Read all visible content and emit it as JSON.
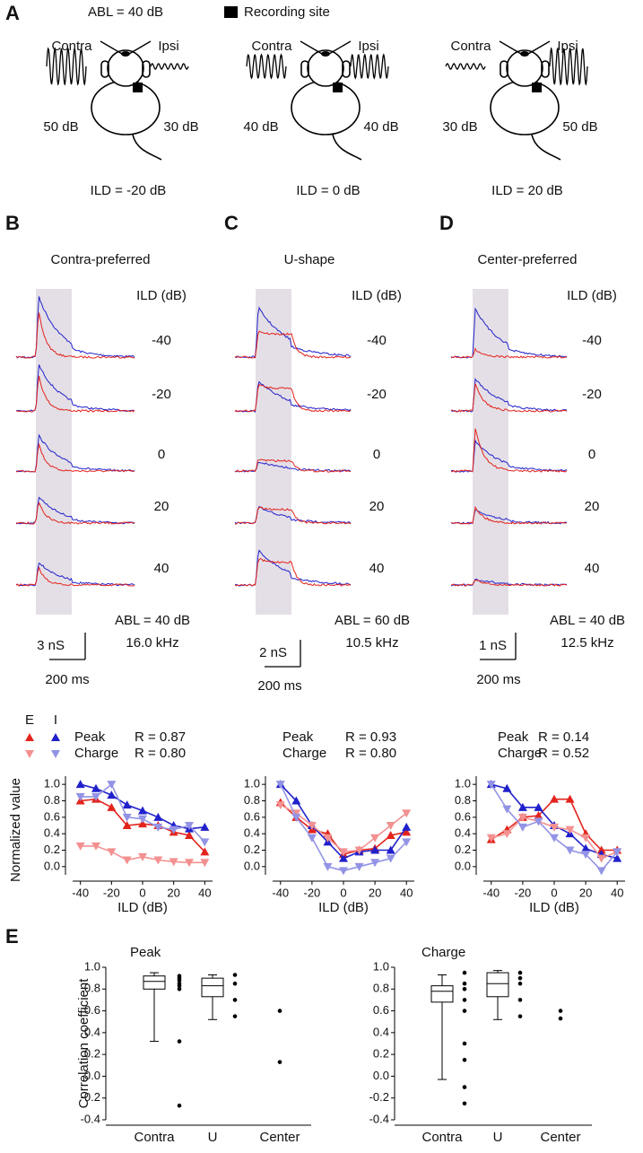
{
  "panel_a": {
    "label": "A",
    "abl": "ABL = 40 dB",
    "legend": "Recording site",
    "conditions": [
      {
        "contra": "Contra",
        "ipsi": "Ipsi",
        "left_db": "50 dB",
        "right_db": "30 dB",
        "ild": "ILD = -20 dB"
      },
      {
        "contra": "Contra",
        "ipsi": "Ipsi",
        "left_db": "40 dB",
        "right_db": "40 dB",
        "ild": "ILD = 0 dB"
      },
      {
        "contra": "Contra",
        "ipsi": "Ipsi",
        "left_db": "30 dB",
        "right_db": "50 dB",
        "ild": "ILD = 20 dB"
      }
    ]
  },
  "trace_panels": [
    {
      "label": "B",
      "title": "Contra-preferred",
      "ild_header": "ILD (dB)",
      "ilds": [
        -40,
        -20,
        0,
        20,
        40
      ],
      "abl": "ABL = 40 dB",
      "freq": "16.0 kHz",
      "scale_y": {
        "value": 3,
        "label": "3 nS"
      },
      "scale_x": "200 ms",
      "E": [
        5.3,
        4.2,
        3.2,
        2.5,
        2.0
      ],
      "I": [
        6.8,
        5.2,
        4.0,
        3.0,
        2.6
      ]
    },
    {
      "label": "C",
      "title": "U-shape",
      "ild_header": "ILD (dB)",
      "ilds": [
        -40,
        -20,
        0,
        20,
        40
      ],
      "abl": "ABL = 60 dB",
      "freq": "10.5 kHz",
      "scale_y": {
        "value": 2,
        "label": "2 nS"
      },
      "scale_x": "200 ms",
      "E": [
        2.0,
        2.0,
        0.9,
        1.2,
        2.0
      ],
      "I": [
        3.7,
        2.2,
        0.7,
        1.2,
        2.6
      ]
    },
    {
      "label": "D",
      "title": "Center-preferred",
      "ild_header": "ILD (dB)",
      "ilds": [
        -40,
        -20,
        0,
        20,
        40
      ],
      "abl": "ABL = 40 dB",
      "freq": "12.5 kHz",
      "scale_y": {
        "value": 1,
        "label": "1 nS"
      },
      "scale_x": "200 ms",
      "E": [
        0.3,
        1.0,
        1.6,
        0.6,
        0.2
      ],
      "I": [
        1.8,
        1.2,
        1.1,
        0.5,
        0.2
      ]
    }
  ],
  "panel_e_label": "E",
  "chart_data": [
    {
      "type": "line",
      "xlabel": "ILD (dB)",
      "ylabel": "Normalized value",
      "legend": {
        "columns": [
          "E",
          "I"
        ],
        "rows": [
          {
            "name": "Peak",
            "stat": "R = 0.87"
          },
          {
            "name": "Charge",
            "stat": "R = 0.80"
          }
        ]
      },
      "x": [
        -40,
        -30,
        -20,
        -10,
        0,
        10,
        20,
        30,
        40
      ],
      "xlim": [
        -45,
        45
      ],
      "xticks": [
        -40,
        -20,
        0,
        20,
        40
      ],
      "ylim": [
        -0.1,
        1.1
      ],
      "yticks": [
        {
          "value": 0,
          "label": "0.0"
        },
        0.2,
        0.4,
        0.6,
        0.8,
        {
          "value": 1,
          "label": "1.0"
        }
      ],
      "series": [
        {
          "color": "#e3241d",
          "marker": "up",
          "values": [
            0.8,
            0.82,
            0.72,
            0.5,
            0.52,
            0.5,
            0.42,
            0.38,
            0.18
          ]
        },
        {
          "color": "#2020cc",
          "marker": "up",
          "values": [
            1.0,
            0.95,
            0.87,
            0.75,
            0.68,
            0.6,
            0.5,
            0.46,
            0.48
          ]
        },
        {
          "color": "#f39191",
          "marker": "down",
          "values": [
            0.25,
            0.25,
            0.18,
            0.08,
            0.12,
            0.08,
            0.06,
            0.05,
            0.05
          ]
        },
        {
          "color": "#9393e6",
          "marker": "down",
          "values": [
            0.85,
            0.85,
            1.0,
            0.6,
            0.58,
            0.48,
            0.45,
            0.5,
            0.3
          ]
        }
      ]
    },
    {
      "type": "line",
      "xlabel": "ILD (dB)",
      "legend": {
        "rows": [
          {
            "name": "Peak",
            "stat": "R = 0.93"
          },
          {
            "name": "Charge",
            "stat": "R = 0.80"
          }
        ]
      },
      "x": [
        -40,
        -30,
        -20,
        -10,
        0,
        10,
        20,
        30,
        40
      ],
      "xlim": [
        -45,
        45
      ],
      "xticks": [
        -40,
        -20,
        0,
        20,
        40
      ],
      "ylim": [
        -0.1,
        1.1
      ],
      "yticks": [
        {
          "value": 0,
          "label": "0.0"
        },
        0.2,
        0.4,
        0.6,
        0.8,
        {
          "value": 1,
          "label": "1.0"
        }
      ],
      "series": [
        {
          "color": "#e3241d",
          "marker": "up",
          "values": [
            0.78,
            0.6,
            0.45,
            0.4,
            0.15,
            0.2,
            0.22,
            0.38,
            0.42
          ]
        },
        {
          "color": "#2020cc",
          "marker": "up",
          "values": [
            1.0,
            0.8,
            0.5,
            0.3,
            0.1,
            0.18,
            0.2,
            0.2,
            0.48
          ]
        },
        {
          "color": "#f39191",
          "marker": "down",
          "values": [
            0.75,
            0.65,
            0.5,
            0.35,
            0.18,
            0.2,
            0.35,
            0.5,
            0.65
          ]
        },
        {
          "color": "#9393e6",
          "marker": "down",
          "values": [
            1.0,
            0.6,
            0.35,
            0.0,
            -0.05,
            0.0,
            0.05,
            0.1,
            0.3
          ]
        }
      ]
    },
    {
      "type": "line",
      "xlabel": "ILD (dB)",
      "legend": {
        "rows": [
          {
            "name": "Peak",
            "stat": "R = 0.14"
          },
          {
            "name": "Charge",
            "stat": "R = 0.52"
          }
        ]
      },
      "x": [
        -40,
        -30,
        -20,
        -10,
        0,
        10,
        20,
        30,
        40
      ],
      "xlim": [
        -45,
        45
      ],
      "xticks": [
        -40,
        -20,
        0,
        20,
        40
      ],
      "ylim": [
        -0.1,
        1.1
      ],
      "yticks": [
        {
          "value": 0,
          "label": "0.0"
        },
        0.2,
        0.4,
        0.6,
        0.8,
        {
          "value": 1,
          "label": "1.0"
        }
      ],
      "series": [
        {
          "color": "#e3241d",
          "marker": "up",
          "values": [
            0.33,
            0.45,
            0.6,
            0.62,
            0.82,
            0.82,
            0.4,
            0.2,
            0.2
          ]
        },
        {
          "color": "#2020cc",
          "marker": "up",
          "values": [
            1.0,
            0.95,
            0.72,
            0.72,
            0.5,
            0.4,
            0.22,
            0.15,
            0.1
          ]
        },
        {
          "color": "#f39191",
          "marker": "down",
          "values": [
            0.35,
            0.4,
            0.6,
            0.55,
            0.48,
            0.45,
            0.35,
            0.1,
            0.18
          ]
        },
        {
          "color": "#9393e6",
          "marker": "down",
          "values": [
            1.0,
            0.7,
            0.48,
            0.55,
            0.35,
            0.2,
            0.15,
            -0.05,
            0.18
          ]
        }
      ]
    },
    {
      "type": "box",
      "title": "Peak",
      "ylabel": "Correlation coefficient",
      "categories": [
        "Contra",
        "U",
        "Center"
      ],
      "ylim": [
        -0.4,
        1.0
      ],
      "yticks": [
        -0.4,
        -0.2,
        {
          "value": 0,
          "label": "0.0"
        },
        0.2,
        0.4,
        0.6,
        0.8,
        {
          "value": 1,
          "label": "1.0"
        }
      ],
      "boxes": [
        {
          "low": 0.32,
          "q1": 0.8,
          "median": 0.87,
          "q3": 0.92,
          "high": 0.95
        },
        {
          "low": 0.52,
          "q1": 0.73,
          "median": 0.83,
          "q3": 0.9,
          "high": 0.93
        }
      ],
      "points": [
        [
          0.92,
          0.9,
          0.88,
          0.85,
          0.83,
          0.8,
          0.32,
          -0.27
        ],
        [
          0.93,
          0.85,
          0.7,
          0.55
        ],
        [
          0.6,
          0.13
        ]
      ]
    },
    {
      "type": "box",
      "title": "Charge",
      "categories": [
        "Contra",
        "U",
        "Center"
      ],
      "ylim": [
        -0.4,
        1.0
      ],
      "yticks": [
        -0.4,
        -0.2,
        {
          "value": 0,
          "label": "0.0"
        },
        0.2,
        0.4,
        0.6,
        0.8,
        {
          "value": 1,
          "label": "1.0"
        }
      ],
      "boxes": [
        {
          "low": -0.03,
          "q1": 0.68,
          "median": 0.78,
          "q3": 0.83,
          "high": 0.93
        },
        {
          "low": 0.52,
          "q1": 0.73,
          "median": 0.85,
          "q3": 0.95,
          "high": 0.97
        }
      ],
      "points": [
        [
          0.95,
          0.85,
          0.8,
          0.7,
          0.6,
          0.3,
          0.15,
          -0.1,
          -0.25
        ],
        [
          0.95,
          0.9,
          0.85,
          0.7,
          0.55
        ],
        [
          0.6,
          0.53
        ]
      ]
    }
  ]
}
